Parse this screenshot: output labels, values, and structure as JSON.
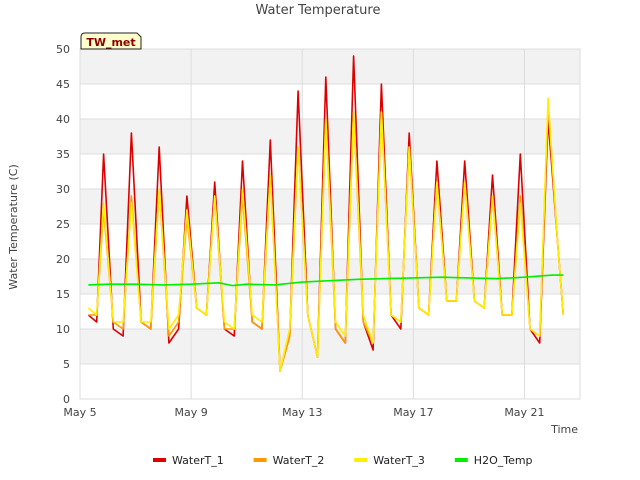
{
  "chart_data": {
    "type": "line",
    "title": "Water Temperature",
    "xlabel": "Time",
    "ylabel": "Water Temperature (C)",
    "badge": "TW_met",
    "x_unit": "days since May 5",
    "xlim": [
      0,
      18
    ],
    "ylim": [
      0,
      50
    ],
    "yticks": [
      0,
      5,
      10,
      15,
      20,
      25,
      30,
      35,
      40,
      45,
      50
    ],
    "xticks": [
      {
        "value": 0,
        "label": "May 5"
      },
      {
        "value": 4,
        "label": "May 9"
      },
      {
        "value": 8,
        "label": "May 13"
      },
      {
        "value": 12,
        "label": "May 17"
      },
      {
        "value": 16,
        "label": "May 21"
      }
    ],
    "grid": true,
    "shaded_bands": true,
    "legend_position": "bottom",
    "series": [
      {
        "name": "WaterT_1",
        "color": "#dd0000",
        "x": [
          0.3,
          0.6,
          0.85,
          1.2,
          1.55,
          1.85,
          2.2,
          2.55,
          2.85,
          3.2,
          3.55,
          3.85,
          4.2,
          4.55,
          4.85,
          5.2,
          5.55,
          5.85,
          6.2,
          6.55,
          6.85,
          7.2,
          7.55,
          7.85,
          8.2,
          8.55,
          8.85,
          9.2,
          9.55,
          9.85,
          10.2,
          10.55,
          10.85,
          11.2,
          11.55,
          11.85,
          12.2,
          12.55,
          12.85,
          13.2,
          13.55,
          13.85,
          14.2,
          14.55,
          14.85,
          15.2,
          15.55,
          15.85,
          16.2,
          16.55,
          16.85,
          17.2,
          17.4
        ],
        "y": [
          12,
          11,
          35,
          10,
          9,
          38,
          11,
          10,
          36,
          8,
          10,
          29,
          13,
          12,
          31,
          10,
          9,
          34,
          11,
          10,
          37,
          4,
          9,
          44,
          12,
          6,
          46,
          10,
          8,
          49,
          11,
          7,
          45,
          12,
          10,
          38,
          13,
          12,
          34,
          14,
          14,
          34,
          14,
          13,
          32,
          12,
          12,
          35,
          10,
          8,
          40,
          22,
          12
        ]
      },
      {
        "name": "WaterT_2",
        "color": "#ff9900",
        "x": [
          0.3,
          0.6,
          0.85,
          1.2,
          1.55,
          1.85,
          2.2,
          2.55,
          2.85,
          3.2,
          3.55,
          3.85,
          4.2,
          4.55,
          4.85,
          5.2,
          5.55,
          5.85,
          6.2,
          6.55,
          6.85,
          7.2,
          7.55,
          7.85,
          8.2,
          8.55,
          8.85,
          9.2,
          9.55,
          9.85,
          10.2,
          10.55,
          10.85,
          11.2,
          11.55,
          11.85,
          12.2,
          12.55,
          12.85,
          13.2,
          13.55,
          13.85,
          14.2,
          14.55,
          14.85,
          15.2,
          15.55,
          15.85,
          16.2,
          16.55,
          16.85,
          17.2,
          17.4
        ],
        "y": [
          12,
          12,
          27,
          11,
          10,
          29,
          11,
          10,
          30,
          9,
          11,
          26,
          13,
          12,
          29,
          10,
          10,
          29,
          11,
          10,
          32,
          4,
          9,
          36,
          12,
          6,
          40,
          10,
          8,
          41,
          11,
          8,
          41,
          12,
          11,
          36,
          13,
          12,
          31,
          14,
          14,
          31,
          14,
          13,
          29,
          12,
          12,
          29,
          10,
          9,
          42,
          22,
          12
        ]
      },
      {
        "name": "WaterT_3",
        "color": "#ffee00",
        "x": [
          0.3,
          0.6,
          0.85,
          1.2,
          1.55,
          1.85,
          2.2,
          2.55,
          2.85,
          3.2,
          3.55,
          3.85,
          4.2,
          4.55,
          4.85,
          5.2,
          5.55,
          5.85,
          6.2,
          6.55,
          6.85,
          7.2,
          7.55,
          7.85,
          8.2,
          8.55,
          8.85,
          9.2,
          9.55,
          9.85,
          10.2,
          10.55,
          10.85,
          11.2,
          11.55,
          11.85,
          12.2,
          12.55,
          12.85,
          13.2,
          13.55,
          13.85,
          14.2,
          14.55,
          14.85,
          15.2,
          15.55,
          15.85,
          16.2,
          16.55,
          16.85,
          17.2,
          17.4
        ],
        "y": [
          13,
          12,
          28,
          11,
          11,
          28,
          11,
          11,
          30,
          10,
          12,
          27,
          13,
          12,
          29,
          11,
          10,
          30,
          12,
          11,
          32,
          4,
          10,
          36,
          12,
          6,
          40,
          11,
          9,
          41,
          12,
          8,
          41,
          12,
          11,
          36,
          13,
          12,
          31,
          14,
          14,
          31,
          14,
          13,
          29,
          12,
          12,
          28,
          10,
          9,
          43,
          22,
          12
        ]
      },
      {
        "name": "H2O_Temp",
        "color": "#00ee00",
        "x": [
          0.3,
          1,
          2,
          3,
          4,
          5,
          5.5,
          6,
          7,
          8,
          9,
          10,
          11,
          12,
          13,
          14,
          15,
          16,
          17,
          17.4
        ],
        "y": [
          16.3,
          16.4,
          16.4,
          16.3,
          16.4,
          16.6,
          16.2,
          16.4,
          16.3,
          16.7,
          16.9,
          17.1,
          17.2,
          17.3,
          17.4,
          17.3,
          17.2,
          17.4,
          17.7,
          17.7
        ]
      }
    ]
  }
}
